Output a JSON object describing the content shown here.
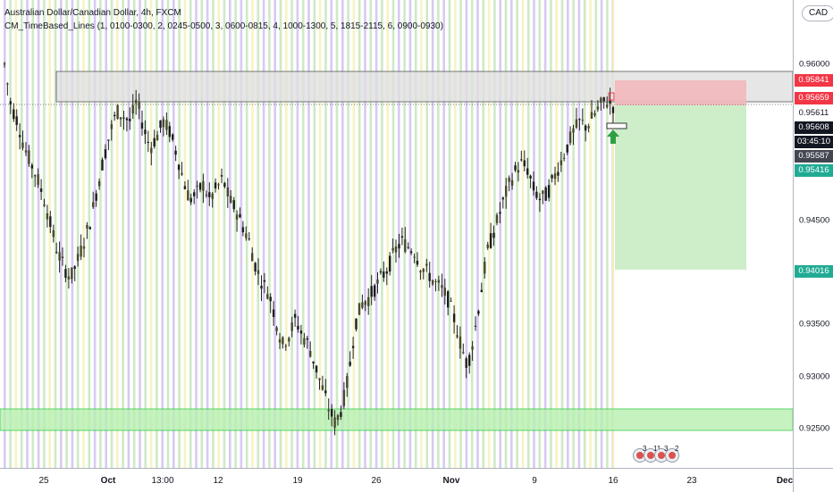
{
  "legend": {
    "symbol_line": "Australian Dollar/Canadian Dollar, 4h, FXCM",
    "indicator_line": "CM_TimeBased_Lines (1, 0100-0300, 2, 0245-0500, 3, 0600-0815, 4, 1000-1300, 5, 1815-2115, 6, 0900-0930)"
  },
  "currency_button": {
    "label": "CAD"
  },
  "price_axis": {
    "ticks": [
      "0.96000",
      "0.95500",
      "0.95000",
      "0.94500",
      "0.94000",
      "0.93500",
      "0.93000",
      "0.92500"
    ],
    "tags": [
      {
        "label": "0.95841",
        "color": "#f23645",
        "text_color": "#ffffff"
      },
      {
        "label": "0.95659",
        "color": "#f23645",
        "text_color": "#ffffff"
      },
      {
        "label": "0.95611",
        "color": "#ffffff",
        "text_color": "#131722"
      },
      {
        "label": "0.95608",
        "color": "#131722",
        "text_color": "#ffffff"
      },
      {
        "label": "03:45:10",
        "color": "#131722",
        "text_color": "#ffffff"
      },
      {
        "label": "0.95587",
        "color": "#434651",
        "text_color": "#ffffff"
      },
      {
        "label": "0.95416",
        "color": "#22ab94",
        "text_color": "#ffffff"
      },
      {
        "label": "0.94016",
        "color": "#22ab94",
        "text_color": "#ffffff"
      }
    ]
  },
  "time_axis": {
    "labels": [
      {
        "text": "25",
        "bold": false
      },
      {
        "text": "Oct",
        "bold": true
      },
      {
        "text": "13:00",
        "bold": false
      },
      {
        "text": "12",
        "bold": false
      },
      {
        "text": "19",
        "bold": false
      },
      {
        "text": "26",
        "bold": false
      },
      {
        "text": "Nov",
        "bold": true
      },
      {
        "text": "9",
        "bold": false
      },
      {
        "text": "16",
        "bold": false
      },
      {
        "text": "23",
        "bold": false
      },
      {
        "text": "Dec",
        "bold": true
      }
    ]
  },
  "events": [
    {
      "count": "3",
      "icon": "economic-event-icon"
    },
    {
      "count": "11",
      "icon": "economic-event-icon"
    },
    {
      "count": "3",
      "icon": "economic-event-icon"
    },
    {
      "count": "2",
      "icon": "economic-event-icon"
    }
  ],
  "colors": {
    "background": "#ffffff",
    "up_candle": "#4a4a2a",
    "down_candle": "#1e1e1e",
    "session_purple": "#c9b8ec",
    "session_green": "#bde3b2",
    "session_yellow": "#f3efb0",
    "stop_zone": "#f2b8bb",
    "target_zone": "#c8ecc3",
    "resistance_zone": "#e0e0e0",
    "support_zone": "#b7f0b0",
    "signal_arrow": "#2ea043"
  },
  "chart_data": {
    "type": "candlestick",
    "symbol": "Australian Dollar/Canadian Dollar",
    "interval": "4h",
    "current_price": 0.95608,
    "countdown": "03:45:10",
    "long_position": {
      "entry": 0.95587,
      "stop": 0.95841,
      "target": 0.94016
    },
    "resistance_zone": [
      0.95659,
      0.95841
    ],
    "support_zone": [
      0.9245,
      0.9265
    ],
    "y_ticks": [
      0.96,
      0.955,
      0.95,
      0.945,
      0.94,
      0.935,
      0.93,
      0.925
    ],
    "price_path": [
      0.96,
      0.956,
      0.9545,
      0.952,
      0.9505,
      0.949,
      0.947,
      0.9445,
      0.942,
      0.9405,
      0.9395,
      0.941,
      0.943,
      0.945,
      0.948,
      0.951,
      0.9535,
      0.9555,
      0.955,
      0.9545,
      0.9565,
      0.954,
      0.952,
      0.953,
      0.9545,
      0.9535,
      0.9515,
      0.949,
      0.947,
      0.9475,
      0.9485,
      0.947,
      0.948,
      0.949,
      0.947,
      0.946,
      0.9445,
      0.943,
      0.9405,
      0.939,
      0.938,
      0.9355,
      0.933,
      0.934,
      0.9355,
      0.934,
      0.933,
      0.931,
      0.929,
      0.927,
      0.9255,
      0.927,
      0.93,
      0.935,
      0.937,
      0.9375,
      0.9385,
      0.9395,
      0.9405,
      0.942,
      0.943,
      0.9425,
      0.942,
      0.9405,
      0.94,
      0.939,
      0.9385,
      0.9375,
      0.9355,
      0.933,
      0.931,
      0.934,
      0.938,
      0.942,
      0.944,
      0.946,
      0.948,
      0.9495,
      0.9505,
      0.95,
      0.948,
      0.947,
      0.9475,
      0.949,
      0.9505,
      0.952,
      0.9535,
      0.9545,
      0.954,
      0.955,
      0.956,
      0.9565,
      0.956
    ]
  }
}
